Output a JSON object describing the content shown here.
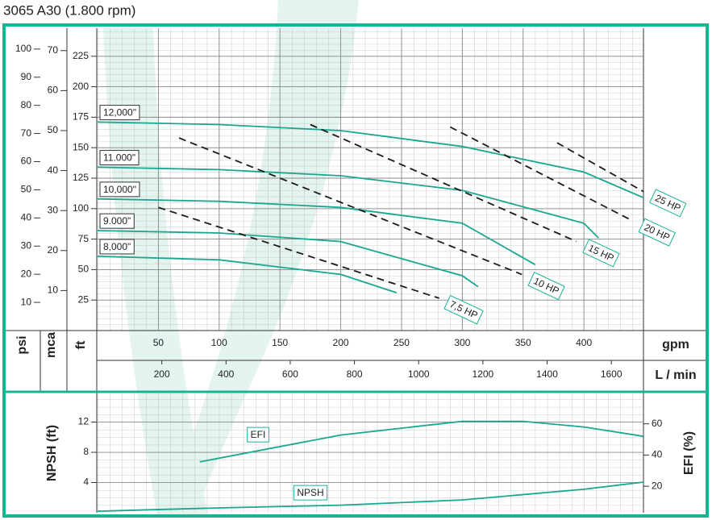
{
  "chart_data": [
    {
      "type": "line",
      "title": "3065 A30 (1.800 rpm)",
      "xlabel": "gpm",
      "xlim": [
        0,
        449
      ],
      "xticks": [
        50,
        100,
        150,
        200,
        250,
        300,
        350,
        400
      ],
      "x2label": "L / min",
      "x2lim": [
        0,
        1700
      ],
      "x2ticks": [
        200,
        400,
        600,
        800,
        1000,
        1200,
        1400,
        1600
      ],
      "ylabel": "ft",
      "ylim": [
        0,
        248
      ],
      "yticks": [
        25,
        50,
        75,
        100,
        125,
        150,
        175,
        200,
        225
      ],
      "extra_y_axes": [
        {
          "label": "psi",
          "lim": [
            0,
            107.4
          ],
          "ticks": [
            10,
            20,
            30,
            40,
            50,
            60,
            70,
            80,
            90,
            100
          ]
        },
        {
          "label": "mca",
          "lim": [
            0,
            75.6
          ],
          "ticks": [
            10,
            20,
            30,
            40,
            50,
            60,
            70
          ]
        }
      ],
      "grid": true,
      "series": [
        {
          "name": "12,000\"",
          "color": "#1aa791",
          "x": [
            0,
            100,
            200,
            300,
            400,
            449
          ],
          "values": [
            171,
            169,
            164,
            151,
            130,
            109
          ]
        },
        {
          "name": "11.000\"",
          "color": "#1aa791",
          "x": [
            0,
            100,
            200,
            300,
            400,
            412
          ],
          "values": [
            134,
            132,
            127,
            115,
            88,
            76
          ]
        },
        {
          "name": "10,000\"",
          "color": "#1aa791",
          "x": [
            0,
            100,
            200,
            300,
            360
          ],
          "values": [
            108,
            106,
            101,
            88,
            54
          ]
        },
        {
          "name": "9.000\"",
          "color": "#1aa791",
          "x": [
            0,
            100,
            200,
            300,
            313
          ],
          "values": [
            82,
            80,
            73,
            45,
            36
          ]
        },
        {
          "name": "8,000\"",
          "color": "#1aa791",
          "x": [
            0,
            100,
            200,
            246
          ],
          "values": [
            61,
            58,
            46,
            31
          ]
        }
      ],
      "power_lines": [
        {
          "name": "7,5 HP",
          "color": "#1a1a1a",
          "line_style": "dashed",
          "x": [
            50,
            281
          ],
          "values": [
            101,
            26.5
          ]
        },
        {
          "name": "10 HP",
          "color": "#1a1a1a",
          "line_style": "dashed",
          "x": [
            67,
            349
          ],
          "values": [
            158,
            46
          ]
        },
        {
          "name": "15 HP",
          "color": "#1a1a1a",
          "line_style": "dashed",
          "x": [
            175,
            394
          ],
          "values": [
            169,
            73
          ]
        },
        {
          "name": "20 HP",
          "color": "#1a1a1a",
          "line_style": "dashed",
          "x": [
            290,
            440
          ],
          "values": [
            167,
            90
          ]
        },
        {
          "name": "25 HP",
          "color": "#1a1a1a",
          "line_style": "dashed",
          "x": [
            378,
            449
          ],
          "values": [
            154,
            114
          ]
        }
      ]
    },
    {
      "type": "line",
      "xlim": [
        0,
        449
      ],
      "ylabel": "NPSH (ft)",
      "ylim": [
        0,
        15.9
      ],
      "yticks": [
        4,
        8,
        12
      ],
      "y2label": "EFI (%)",
      "y2lim": [
        3,
        80
      ],
      "y2ticks": [
        20,
        40,
        60
      ],
      "grid": true,
      "series": [
        {
          "name": "EFI",
          "axis": "y2",
          "color": "#1aa791",
          "x": [
            84,
            200,
            300,
            350,
            400,
            449
          ],
          "values": [
            35.6,
            52.8,
            61.6,
            61.6,
            58,
            52
          ]
        },
        {
          "name": "NPSH",
          "color": "#1aa791",
          "x": [
            0,
            100,
            200,
            300,
            400,
            449
          ],
          "values": [
            0.2,
            0.64,
            1.0,
            1.7,
            3.1,
            4.05
          ]
        }
      ]
    }
  ]
}
